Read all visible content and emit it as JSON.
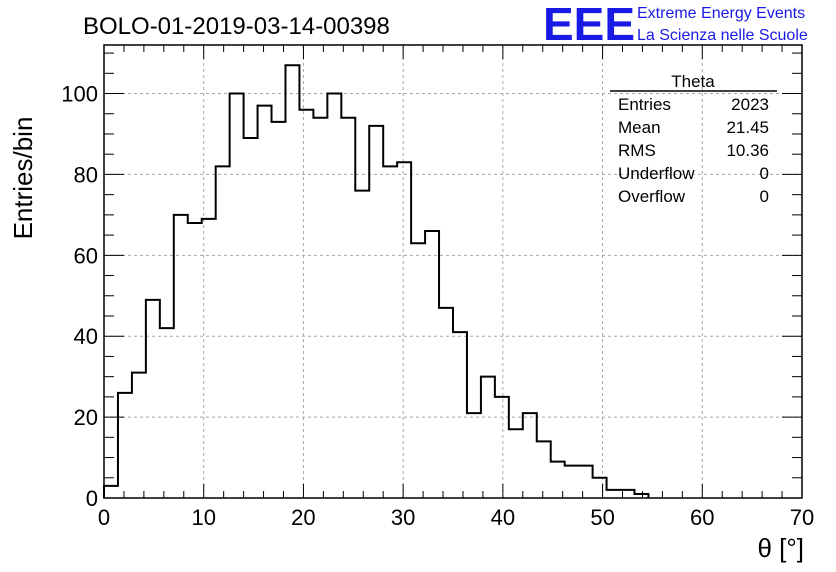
{
  "chart_data": {
    "type": "histogram",
    "title": "BOLO-01-2019-03-14-00398",
    "xlabel": "θ [°]",
    "ylabel": "Entries/bin",
    "xlim": [
      0,
      70
    ],
    "ylim": [
      0,
      112
    ],
    "bin_width": 1.4,
    "grid": true,
    "x_ticks": [
      "0",
      "10",
      "20",
      "30",
      "40",
      "50",
      "60",
      "70"
    ],
    "y_ticks": [
      "0",
      "20",
      "40",
      "60",
      "80",
      "100"
    ],
    "values": [
      3,
      26,
      31,
      49,
      42,
      70,
      68,
      69,
      82,
      100,
      89,
      97,
      93,
      107,
      96,
      94,
      100,
      94,
      76,
      92,
      82,
      83,
      63,
      66,
      47,
      41,
      21,
      30,
      25,
      17,
      21,
      14,
      9,
      8,
      8,
      5,
      2,
      2,
      1,
      0,
      0,
      0,
      0,
      0,
      0,
      0,
      0,
      0,
      0,
      0
    ],
    "stats": {
      "name": "Theta",
      "rows": [
        {
          "label": "Entries",
          "value": "2023"
        },
        {
          "label": "Mean",
          "value": "21.45"
        },
        {
          "label": "RMS",
          "value": "10.36"
        },
        {
          "label": "Underflow",
          "value": "0"
        },
        {
          "label": "Overflow",
          "value": "0"
        }
      ]
    }
  },
  "logo": {
    "letters": "EEE",
    "line1": "Extreme Energy Events",
    "line2": "La Scienza nelle Scuole"
  },
  "colors": {
    "logo": "#1a1ae6",
    "histogram": "#000000",
    "grid": "#a8a8a8"
  }
}
